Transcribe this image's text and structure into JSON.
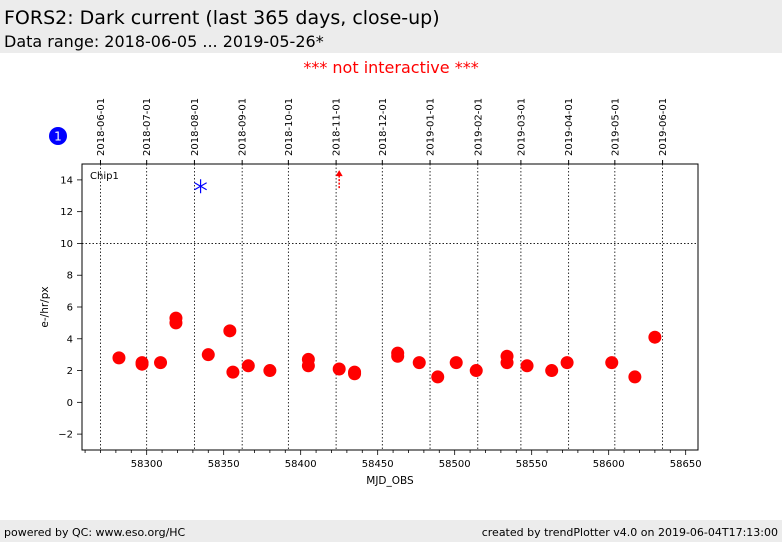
{
  "header": {
    "title": "FORS2: Dark current (last 365 days, close-up)",
    "subtitle": "Data range: 2018-06-05 ... 2019-05-26*"
  },
  "notice": "*** not interactive ***",
  "footer": {
    "left": "powered by QC: www.eso.org/HC",
    "right": "created by trendPlotter v4.0 on 2019-06-04T17:13:00"
  },
  "colors": {
    "marker": "#ff0000",
    "star": "#0000ff",
    "badge": "#0000ff",
    "notice": "#ff0000"
  },
  "chart_data": {
    "type": "scatter",
    "panel_label": "Chip1",
    "badge": "1",
    "xlabel": "MJD_OBS",
    "ylabel": "e-/hr/px",
    "xlim": [
      58258,
      58658
    ],
    "ylim": [
      -3,
      15
    ],
    "xticks": [
      58300,
      58350,
      58400,
      58450,
      58500,
      58550,
      58600,
      58650
    ],
    "yticks": [
      -2,
      0,
      2,
      4,
      6,
      8,
      10,
      12,
      14
    ],
    "reference_line_y": 10,
    "date_lines": [
      {
        "mjd": 58270,
        "label": "2018-06-01"
      },
      {
        "mjd": 58300,
        "label": "2018-07-01"
      },
      {
        "mjd": 58331,
        "label": "2018-08-01"
      },
      {
        "mjd": 58362,
        "label": "2018-09-01"
      },
      {
        "mjd": 58392,
        "label": "2018-10-01"
      },
      {
        "mjd": 58423,
        "label": "2018-11-01"
      },
      {
        "mjd": 58453,
        "label": "2018-12-01"
      },
      {
        "mjd": 58484,
        "label": "2019-01-01"
      },
      {
        "mjd": 58515,
        "label": "2019-02-01"
      },
      {
        "mjd": 58543,
        "label": "2019-03-01"
      },
      {
        "mjd": 58574,
        "label": "2019-04-01"
      },
      {
        "mjd": 58604,
        "label": "2019-05-01"
      },
      {
        "mjd": 58635,
        "label": "2019-06-01"
      }
    ],
    "series": [
      {
        "points": [
          [
            58282,
            2.8
          ],
          [
            58297,
            2.5
          ],
          [
            58297,
            2.4
          ],
          [
            58309,
            2.5
          ],
          [
            58319,
            5.3
          ],
          [
            58319,
            5.0
          ],
          [
            58340,
            3.0
          ],
          [
            58354,
            4.5
          ],
          [
            58356,
            1.9
          ],
          [
            58366,
            2.3
          ],
          [
            58380,
            2.0
          ],
          [
            58405,
            2.7
          ],
          [
            58405,
            2.3
          ],
          [
            58425,
            2.1
          ],
          [
            58435,
            1.9
          ],
          [
            58435,
            1.8
          ],
          [
            58463,
            3.1
          ],
          [
            58463,
            2.9
          ],
          [
            58477,
            2.5
          ],
          [
            58489,
            1.6
          ],
          [
            58501,
            2.5
          ],
          [
            58514,
            2.0
          ],
          [
            58534,
            2.9
          ],
          [
            58534,
            2.5
          ],
          [
            58547,
            2.3
          ],
          [
            58563,
            2.0
          ],
          [
            58573,
            2.5
          ],
          [
            58602,
            2.5
          ],
          [
            58617,
            1.6
          ],
          [
            58630,
            4.1
          ]
        ]
      }
    ],
    "outliers": [
      {
        "x": 58335,
        "y": 13.6,
        "marker": "star"
      },
      {
        "x": 58425,
        "y": 13.8,
        "marker": "arrow-up"
      }
    ]
  }
}
